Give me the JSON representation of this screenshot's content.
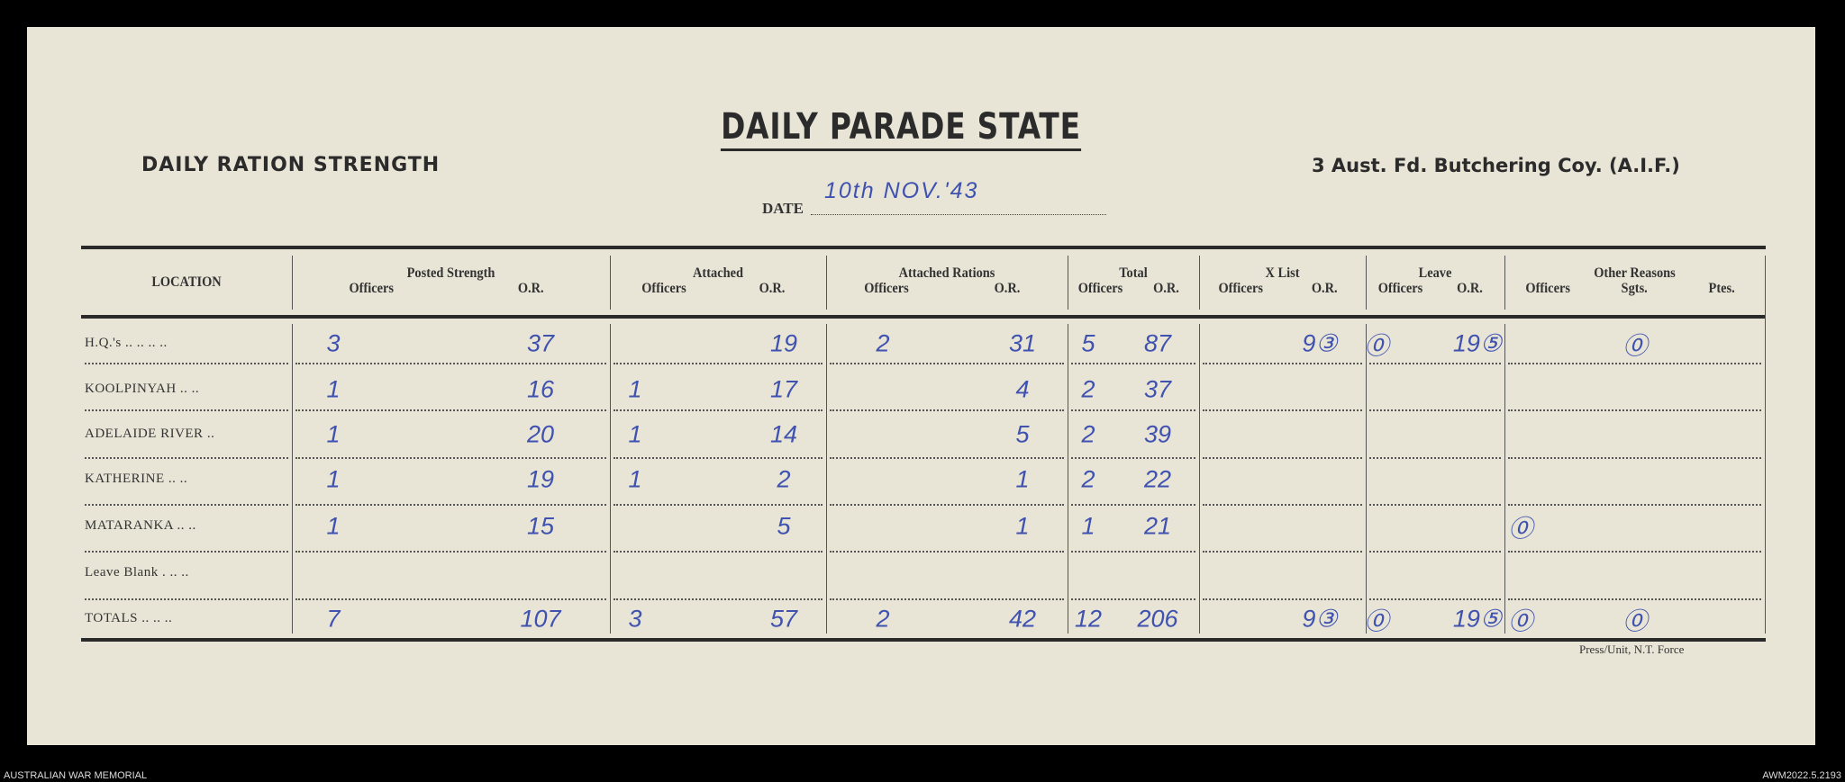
{
  "document": {
    "title": "DAILY PARADE STATE",
    "left_heading": "DAILY RATION STRENGTH",
    "unit": "3 Aust. Fd. Butchering Coy. (A.I.F.)",
    "date_label": "DATE",
    "date_value": "10th NOV.'43",
    "footer_imprint": "Press/Unit, N.T. Force"
  },
  "table": {
    "location_header": "LOCATION",
    "groups": [
      {
        "title": "Posted Strength",
        "subs": [
          "Officers",
          "O.R."
        ]
      },
      {
        "title": "Attached",
        "subs": [
          "Officers",
          "O.R."
        ]
      },
      {
        "title": "Attached Rations",
        "subs": [
          "Officers",
          "O.R."
        ]
      },
      {
        "title": "Total",
        "subs": [
          "Officers",
          "O.R."
        ]
      },
      {
        "title": "X List",
        "subs": [
          "Officers",
          "O.R."
        ]
      },
      {
        "title": "Leave",
        "subs": [
          "Officers",
          "O.R."
        ]
      },
      {
        "title": "Other Reasons",
        "subs": [
          "Officers",
          "Sgts.",
          "Ptes."
        ]
      }
    ],
    "rows": [
      {
        "location": "H.Q.'s  .. .. .. ..",
        "values": [
          "3",
          "37",
          "",
          "19",
          "2",
          "31",
          "5",
          "87",
          "",
          "9③",
          "⓪",
          "19⑤",
          "",
          "⓪",
          ""
        ]
      },
      {
        "location": "KOOLPINYAH  .. ..",
        "values": [
          "1",
          "16",
          "1",
          "17",
          "",
          "4",
          "2",
          "37",
          "",
          "",
          "",
          "",
          "",
          "",
          ""
        ]
      },
      {
        "location": "ADELAIDE RIVER ..",
        "values": [
          "1",
          "20",
          "1",
          "14",
          "",
          "5",
          "2",
          "39",
          "",
          "",
          "",
          "",
          "",
          "",
          ""
        ]
      },
      {
        "location": "KATHERINE  .. ..",
        "values": [
          "1",
          "19",
          "1",
          "2",
          "",
          "1",
          "2",
          "22",
          "",
          "",
          "",
          "",
          "",
          "",
          ""
        ]
      },
      {
        "location": "MATARANKA  .. ..",
        "values": [
          "1",
          "15",
          "",
          "5",
          "",
          "1",
          "1",
          "21",
          "",
          "",
          "",
          "",
          "⓪",
          "",
          ""
        ]
      },
      {
        "location": "Leave Blank .  .. ..",
        "values": [
          "",
          "",
          "",
          "",
          "",
          "",
          "",
          "",
          "",
          "",
          "",
          "",
          "",
          "",
          ""
        ]
      },
      {
        "location": "TOTALS  .. .. ..",
        "values": [
          "7",
          "107",
          "3",
          "57",
          "2",
          "42",
          "12",
          "206",
          "",
          "9③",
          "⓪",
          "19⑤",
          "⓪",
          "⓪",
          ""
        ]
      }
    ]
  },
  "archive": {
    "institution": "AUSTRALIAN WAR MEMORIAL",
    "accession": "AWM2022.5.2193"
  },
  "colors": {
    "paper": "#e8e4d6",
    "ink": "#3f52b0",
    "print": "#2b2b2b"
  }
}
